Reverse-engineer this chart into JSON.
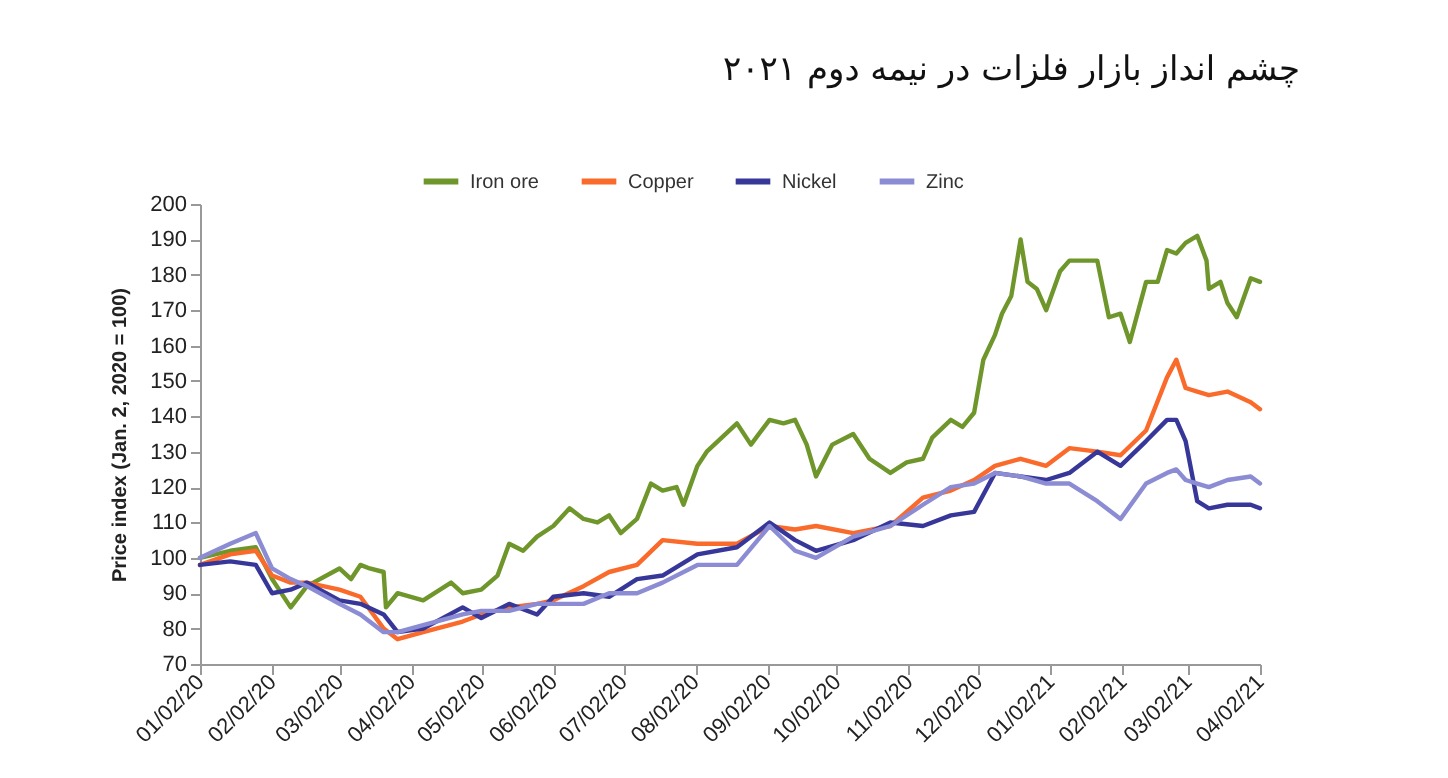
{
  "chart_data": {
    "type": "line",
    "title": "چشم انداز بازار فلزات در نیمه دوم ۲۰۲۱",
    "ylabel": "Price index (Jan. 2, 2020 = 100)",
    "x": [
      "2020-01-02",
      "2020-01-15",
      "2020-01-26",
      "2020-02-02",
      "2020-02-10",
      "2020-02-17",
      "2020-03-02",
      "2020-03-11",
      "2020-03-21",
      "2020-03-27",
      "2020-04-07",
      "2020-04-24",
      "2020-05-02",
      "2020-05-14",
      "2020-05-26",
      "2020-06-02",
      "2020-06-15",
      "2020-06-26",
      "2020-07-08",
      "2020-07-19",
      "2020-08-03",
      "2020-08-20",
      "2020-09-03",
      "2020-09-14",
      "2020-09-23",
      "2020-10-09",
      "2020-10-25",
      "2020-11-08",
      "2020-11-20",
      "2020-11-30",
      "2020-12-09",
      "2020-12-20",
      "2020-12-31",
      "2021-01-10",
      "2021-01-22",
      "2021-02-01",
      "2021-02-12",
      "2021-02-21",
      "2021-02-25",
      "2021-03-01",
      "2021-03-06",
      "2021-03-11",
      "2021-03-19",
      "2021-03-29",
      "2021-04-02"
    ],
    "series": [
      {
        "name": "Iron ore",
        "color": "#6f962b",
        "x": [
          "2020-01-02",
          "2020-01-15",
          "2020-01-26",
          "2020-02-02",
          "2020-02-10",
          "2020-02-17",
          "2020-03-02",
          "2020-03-07",
          "2020-03-11",
          "2020-03-15",
          "2020-03-21",
          "2020-03-22",
          "2020-03-27",
          "2020-04-07",
          "2020-04-19",
          "2020-04-24",
          "2020-05-02",
          "2020-05-09",
          "2020-05-14",
          "2020-05-20",
          "2020-05-26",
          "2020-06-02",
          "2020-06-09",
          "2020-06-15",
          "2020-06-21",
          "2020-06-26",
          "2020-07-01",
          "2020-07-08",
          "2020-07-14",
          "2020-07-19",
          "2020-07-25",
          "2020-07-28",
          "2020-08-03",
          "2020-08-07",
          "2020-08-20",
          "2020-08-26",
          "2020-09-03",
          "2020-09-09",
          "2020-09-14",
          "2020-09-19",
          "2020-09-23",
          "2020-09-30",
          "2020-10-09",
          "2020-10-16",
          "2020-10-25",
          "2020-11-01",
          "2020-11-08",
          "2020-11-12",
          "2020-11-20",
          "2020-11-25",
          "2020-11-30",
          "2020-12-04",
          "2020-12-09",
          "2020-12-12",
          "2020-12-16",
          "2020-12-20",
          "2020-12-23",
          "2020-12-27",
          "2020-12-31",
          "2021-01-06",
          "2021-01-10",
          "2021-01-16",
          "2021-01-22",
          "2021-01-27",
          "2021-02-01",
          "2021-02-05",
          "2021-02-12",
          "2021-02-17",
          "2021-02-21",
          "2021-02-25",
          "2021-03-01",
          "2021-03-06",
          "2021-03-10",
          "2021-03-11",
          "2021-03-16",
          "2021-03-19",
          "2021-03-23",
          "2021-03-29",
          "2021-04-02"
        ],
        "values": [
          100,
          102,
          103,
          94,
          86,
          92,
          97,
          94,
          98,
          97,
          96,
          86,
          90,
          88,
          93,
          90,
          91,
          95,
          104,
          102,
          106,
          109,
          114,
          111,
          110,
          112,
          107,
          111,
          121,
          119,
          120,
          115,
          126,
          130,
          138,
          132,
          139,
          138,
          139,
          132,
          123,
          132,
          135,
          128,
          124,
          127,
          128,
          134,
          139,
          137,
          141,
          156,
          163,
          169,
          174,
          190,
          178,
          176,
          170,
          181,
          184,
          184,
          184,
          168,
          169,
          161,
          178,
          178,
          187,
          186,
          189,
          191,
          184,
          176,
          178,
          172,
          168,
          179,
          178
        ]
      },
      {
        "name": "Copper",
        "color": "#f96a2b",
        "values": [
          98,
          101,
          102,
          95,
          93,
          93,
          91,
          89,
          80,
          77,
          79,
          82,
          84,
          86,
          87,
          88,
          92,
          96,
          98,
          105,
          104,
          104,
          109,
          108,
          109,
          107,
          109,
          117,
          119,
          122,
          126,
          128,
          126,
          131,
          130,
          129,
          136,
          151,
          156,
          148,
          147,
          146,
          147,
          144,
          142
        ]
      },
      {
        "name": "Nickel",
        "color": "#37379a",
        "values": [
          98,
          99,
          98,
          90,
          91,
          93,
          88,
          87,
          84,
          79,
          80,
          86,
          83,
          87,
          84,
          89,
          90,
          89,
          94,
          95,
          101,
          103,
          110,
          105,
          102,
          105,
          110,
          109,
          112,
          113,
          124,
          123,
          122,
          124,
          130,
          126,
          133,
          139,
          139,
          133,
          116,
          114,
          115,
          115,
          114
        ]
      },
      {
        "name": "Zinc",
        "color": "#8c8cd4",
        "values": [
          100,
          104,
          107,
          97,
          94,
          92,
          87,
          84,
          79,
          79,
          81,
          84,
          85,
          85,
          87,
          87,
          87,
          90,
          90,
          93,
          98,
          98,
          109,
          102,
          100,
          106,
          109,
          115,
          120,
          121,
          124,
          123,
          121,
          121,
          116,
          111,
          121,
          124,
          125,
          122,
          121,
          120,
          122,
          123,
          121
        ]
      }
    ],
    "xlim": [
      "2020-01-02",
      "2021-04-02"
    ],
    "xticks": [
      {
        "value": "2020-01-02",
        "label": "01/02/20"
      },
      {
        "value": "2020-02-02",
        "label": "02/02/20"
      },
      {
        "value": "2020-03-02",
        "label": "03/02/20"
      },
      {
        "value": "2020-04-02",
        "label": "04/02/20"
      },
      {
        "value": "2020-05-02",
        "label": "05/02/20"
      },
      {
        "value": "2020-06-02",
        "label": "06/02/20"
      },
      {
        "value": "2020-07-02",
        "label": "07/02/20"
      },
      {
        "value": "2020-08-02",
        "label": "08/02/20"
      },
      {
        "value": "2020-09-02",
        "label": "09/02/20"
      },
      {
        "value": "2020-10-02",
        "label": "10/02/20"
      },
      {
        "value": "2020-11-02",
        "label": "11/02/20"
      },
      {
        "value": "2020-12-02",
        "label": "12/02/20"
      },
      {
        "value": "2021-01-02",
        "label": "01/02/21"
      },
      {
        "value": "2021-02-02",
        "label": "02/02/21"
      },
      {
        "value": "2021-03-02",
        "label": "03/02/21"
      },
      {
        "value": "2021-04-02",
        "label": "04/02/21"
      }
    ],
    "ylim": [
      70,
      200
    ],
    "yticks": [
      70,
      80,
      90,
      100,
      110,
      120,
      130,
      140,
      150,
      160,
      170,
      180,
      190,
      200
    ],
    "grid": false,
    "legend": "top",
    "line_style": "solid"
  }
}
